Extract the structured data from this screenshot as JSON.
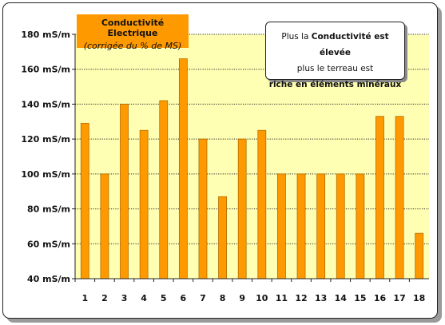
{
  "chart_data": {
    "type": "bar",
    "title": "Conductivité Electrique",
    "subtitle": "(corrigée du % de MS)",
    "categories": [
      "1",
      "2",
      "3",
      "4",
      "5",
      "6",
      "7",
      "8",
      "9",
      "10",
      "11",
      "12",
      "13",
      "14",
      "15",
      "16",
      "17",
      "18"
    ],
    "series": [
      {
        "values": [
          129,
          100,
          140,
          125,
          142,
          166,
          120,
          87,
          120,
          125,
          100,
          100,
          100,
          100,
          100,
          133,
          133,
          66
        ]
      }
    ],
    "ylim": [
      40,
      180
    ],
    "yticks": [
      40,
      60,
      80,
      100,
      120,
      140,
      160,
      180
    ],
    "ytick_unit": "mS/m",
    "grid": true,
    "colors": {
      "bar": "#ff9900",
      "bar_edge": "#b36b00",
      "plot_bg": "#ffffb3",
      "grid": "#222222"
    },
    "annotation": {
      "line1_pre": "Plus la ",
      "line1_bold": "Conductivité est élevée",
      "line2": "plus le terreau est",
      "line3_bold": "riche en éléments minéraux"
    }
  }
}
